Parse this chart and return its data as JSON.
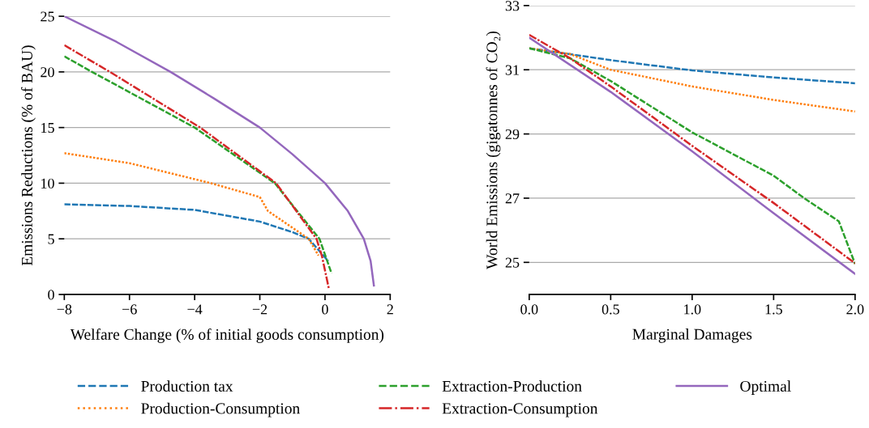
{
  "chart_data": [
    {
      "type": "line",
      "xlabel": "Welfare Change (% of initial goods consumption)",
      "ylabel": "Emissions Reductions (% of BAU)",
      "xlim": [
        -8,
        2
      ],
      "xticks": [
        {
          "value": -8,
          "label": "−8"
        },
        {
          "value": -6,
          "label": "−6"
        },
        {
          "value": -4,
          "label": "−4"
        },
        {
          "value": -2,
          "label": "−2"
        },
        0,
        2
      ],
      "ylim": [
        0,
        25
      ],
      "yticks": [
        0,
        5,
        10,
        15,
        20,
        25
      ],
      "grid": "y",
      "legend": "bottom",
      "series": [
        {
          "name": "Production tax",
          "color": "#1f77b4",
          "line_style": "dashed",
          "x": [
            -8,
            -6,
            -4,
            -2,
            -1,
            -0.5,
            0.1
          ],
          "values": [
            8.1,
            7.95,
            7.6,
            6.55,
            5.6,
            5.0,
            3.0
          ]
        },
        {
          "name": "Production-Consumption",
          "color": "#ff7f0e",
          "line_style": "dotted",
          "x": [
            -8,
            -6,
            -3.5,
            -2,
            -1.75,
            -0.5,
            -0.2
          ],
          "values": [
            12.7,
            11.8,
            10.0,
            8.75,
            7.5,
            5.0,
            3.5
          ]
        },
        {
          "name": "Extraction-Production",
          "color": "#2ca02c",
          "line_style": "dashed",
          "x": [
            -8,
            -7.15,
            -4.0,
            -1.54,
            -0.17,
            0.2
          ],
          "values": [
            21.4,
            20.0,
            15.0,
            10.0,
            5.0,
            1.9
          ]
        },
        {
          "name": "Extraction-Consumption",
          "color": "#d62728",
          "line_style": "dashdot",
          "x": [
            -8,
            -6.6,
            -3.83,
            -1.5,
            -0.26,
            -0.09,
            0.12
          ],
          "values": [
            22.4,
            20.0,
            15.0,
            10.0,
            5.0,
            3.4,
            0.5
          ]
        },
        {
          "name": "Optimal",
          "color": "#9467bd",
          "line_style": "solid",
          "x": [
            -8,
            -6.4,
            -4.74,
            -3.4,
            -2,
            -1,
            0,
            0.7,
            1.19,
            1.4,
            1.5
          ],
          "values": [
            25,
            22.7,
            20.0,
            17.6,
            15.0,
            12.6,
            10.0,
            7.5,
            5.0,
            3.0,
            0.8
          ]
        }
      ]
    },
    {
      "type": "line",
      "xlabel": "Marginal Damages",
      "ylabel": "World Emissions (gigatonnes of CO₂)",
      "xlim": [
        0,
        2
      ],
      "xticks": [
        {
          "value": 0,
          "label": "0.0"
        },
        {
          "value": 0.5,
          "label": "0.5"
        },
        {
          "value": 1,
          "label": "1.0"
        },
        {
          "value": 1.5,
          "label": "1.5"
        },
        {
          "value": 2,
          "label": "2.0"
        }
      ],
      "ylim": [
        24,
        33
      ],
      "yticks": [
        25,
        27,
        29,
        31,
        33
      ],
      "grid": "y",
      "series": [
        {
          "color": "#1f77b4",
          "line_style": "dashed",
          "x": [
            0,
            0.5,
            1,
            1.5,
            2
          ],
          "values": [
            31.67,
            31.3,
            30.98,
            30.76,
            30.58
          ]
        },
        {
          "color": "#ff7f0e",
          "line_style": "dotted",
          "x": [
            0,
            0.25,
            0.5,
            1,
            1.5,
            2
          ],
          "values": [
            31.67,
            31.49,
            31.0,
            30.48,
            30.06,
            29.7
          ]
        },
        {
          "color": "#2ca02c",
          "line_style": "dashed",
          "x": [
            0,
            0.25,
            0.5,
            1,
            1.5,
            1.69,
            1.9,
            2
          ],
          "values": [
            31.67,
            31.36,
            30.65,
            29.05,
            27.7,
            26.99,
            26.28,
            24.95
          ]
        },
        {
          "color": "#d62728",
          "line_style": "dashdot",
          "x": [
            0,
            0.25,
            0.5,
            1,
            1.5,
            2
          ],
          "values": [
            32.09,
            31.36,
            30.48,
            28.63,
            26.85,
            24.97
          ]
        },
        {
          "color": "#9467bd",
          "line_style": "solid",
          "x": [
            0,
            0.5,
            1,
            1.5,
            2
          ],
          "values": [
            32.0,
            30.31,
            28.46,
            26.53,
            24.64
          ]
        }
      ]
    }
  ]
}
